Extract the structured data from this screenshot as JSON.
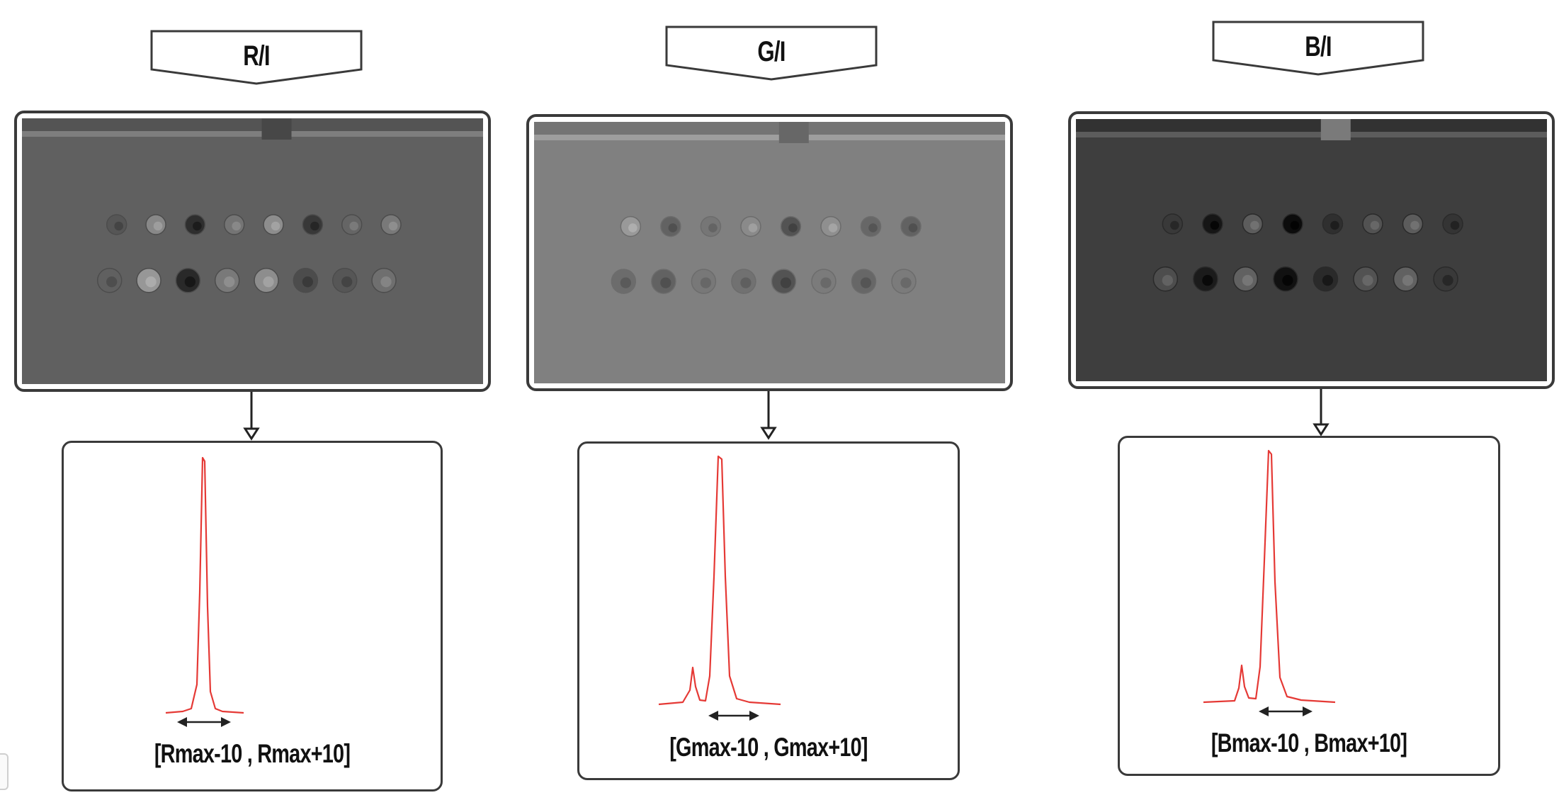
{
  "panels": [
    {
      "channel": "R/I",
      "range_label": "[Rmax-10 , Rmax+10]",
      "image_bg": "#606060",
      "histogram": {
        "peak_color": "#e53935",
        "secondary_peak": false
      }
    },
    {
      "channel": "G/I",
      "range_label": "[Gmax-10 , Gmax+10]",
      "image_bg": "#808080",
      "histogram": {
        "peak_color": "#e53935",
        "secondary_peak": true
      }
    },
    {
      "channel": "B/I",
      "range_label": "[Bmax-10 , Bmax+10]",
      "image_bg": "#3e3e3e",
      "histogram": {
        "peak_color": "#e53935",
        "secondary_peak": true
      }
    }
  ],
  "icons": {
    "down_arrow": "down-arrow-icon",
    "double_arrow": "double-headed-arrow-icon"
  }
}
